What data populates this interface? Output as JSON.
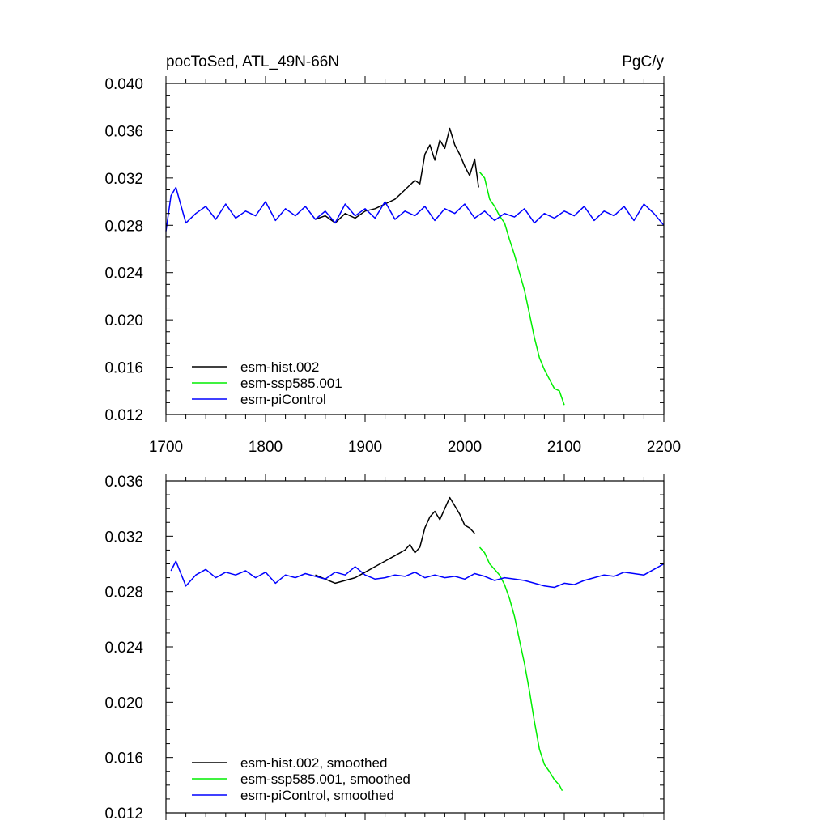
{
  "chart_data": [
    {
      "type": "line",
      "title": "pocToSed, ATL_49N-66N",
      "units": "PgC/y",
      "xlabel": "",
      "ylabel": "",
      "xlim": [
        1700,
        2200
      ],
      "ylim": [
        0.012,
        0.04
      ],
      "xticks": [
        1700,
        1800,
        1900,
        2000,
        2100,
        2200
      ],
      "xtick_labels": [
        "1700",
        "1800",
        "1900",
        "2000",
        "2100",
        "2200"
      ],
      "yticks": [
        0.012,
        0.016,
        0.02,
        0.024,
        0.028,
        0.032,
        0.036,
        0.04
      ],
      "ytick_labels": [
        "0.012",
        "0.016",
        "0.020",
        "0.024",
        "0.028",
        "0.032",
        "0.036",
        "0.040"
      ],
      "legend_position": "bottom-left",
      "series": [
        {
          "name": "esm-hist.002",
          "color": "#000000",
          "x": [
            1850,
            1860,
            1870,
            1880,
            1890,
            1900,
            1910,
            1920,
            1930,
            1940,
            1950,
            1955,
            1960,
            1965,
            1970,
            1975,
            1980,
            1985,
            1990,
            1995,
            2000,
            2005,
            2010,
            2014
          ],
          "y": [
            0.0285,
            0.0288,
            0.0282,
            0.029,
            0.0286,
            0.0292,
            0.0294,
            0.0298,
            0.0302,
            0.031,
            0.0318,
            0.0315,
            0.034,
            0.0348,
            0.0335,
            0.0352,
            0.0345,
            0.0362,
            0.0348,
            0.034,
            0.033,
            0.0322,
            0.0336,
            0.0312
          ]
        },
        {
          "name": "esm-ssp585.001",
          "color": "#00ee00",
          "x": [
            2015,
            2020,
            2025,
            2030,
            2035,
            2040,
            2045,
            2050,
            2055,
            2060,
            2065,
            2070,
            2075,
            2080,
            2085,
            2090,
            2095,
            2100
          ],
          "y": [
            0.0325,
            0.032,
            0.0302,
            0.0296,
            0.0288,
            0.0282,
            0.0268,
            0.0255,
            0.024,
            0.0225,
            0.0205,
            0.0185,
            0.0168,
            0.0158,
            0.015,
            0.0142,
            0.014,
            0.0128
          ]
        },
        {
          "name": "esm-piControl",
          "color": "#0000ff",
          "x": [
            1700,
            1705,
            1710,
            1720,
            1730,
            1740,
            1750,
            1760,
            1770,
            1780,
            1790,
            1800,
            1810,
            1820,
            1830,
            1840,
            1850,
            1860,
            1870,
            1880,
            1890,
            1900,
            1910,
            1920,
            1930,
            1940,
            1950,
            1960,
            1970,
            1980,
            1990,
            2000,
            2010,
            2020,
            2030,
            2040,
            2050,
            2060,
            2070,
            2080,
            2090,
            2100,
            2110,
            2120,
            2130,
            2140,
            2150,
            2160,
            2170,
            2180,
            2190,
            2200
          ],
          "y": [
            0.0275,
            0.0305,
            0.0312,
            0.0282,
            0.029,
            0.0296,
            0.0285,
            0.0298,
            0.0286,
            0.0292,
            0.0288,
            0.03,
            0.0284,
            0.0294,
            0.0288,
            0.0296,
            0.0285,
            0.0292,
            0.0282,
            0.0298,
            0.0288,
            0.0294,
            0.0286,
            0.03,
            0.0285,
            0.0292,
            0.0288,
            0.0296,
            0.0284,
            0.0294,
            0.029,
            0.0298,
            0.0286,
            0.0292,
            0.0284,
            0.029,
            0.0287,
            0.0294,
            0.0282,
            0.029,
            0.0286,
            0.0292,
            0.0288,
            0.0296,
            0.0284,
            0.0292,
            0.0288,
            0.0296,
            0.0284,
            0.0298,
            0.029,
            0.028
          ]
        }
      ]
    },
    {
      "type": "line",
      "title": "",
      "xlabel": "",
      "ylabel": "",
      "xlim": [
        1700,
        2200
      ],
      "ylim": [
        0.012,
        0.036
      ],
      "xticks": [
        1700,
        1800,
        1900,
        2000,
        2100,
        2200
      ],
      "yticks": [
        0.012,
        0.016,
        0.02,
        0.024,
        0.028,
        0.032,
        0.036
      ],
      "ytick_labels": [
        "0.012",
        "0.016",
        "0.020",
        "0.024",
        "0.028",
        "0.032",
        "0.036"
      ],
      "legend_position": "bottom-left",
      "series": [
        {
          "name": "esm-hist.002, smoothed",
          "color": "#000000",
          "x": [
            1850,
            1860,
            1870,
            1880,
            1890,
            1900,
            1910,
            1920,
            1930,
            1940,
            1945,
            1950,
            1955,
            1960,
            1965,
            1970,
            1975,
            1980,
            1985,
            1990,
            1995,
            2000,
            2005,
            2010
          ],
          "y": [
            0.0292,
            0.0289,
            0.0286,
            0.0288,
            0.029,
            0.0294,
            0.0298,
            0.0302,
            0.0306,
            0.031,
            0.0314,
            0.0308,
            0.0312,
            0.0326,
            0.0334,
            0.0338,
            0.0332,
            0.034,
            0.0348,
            0.0342,
            0.0336,
            0.0328,
            0.0326,
            0.0322
          ]
        },
        {
          "name": "esm-ssp585.001, smoothed",
          "color": "#00ee00",
          "x": [
            2015,
            2020,
            2025,
            2030,
            2035,
            2040,
            2045,
            2050,
            2055,
            2060,
            2065,
            2070,
            2075,
            2080,
            2085,
            2090,
            2095,
            2098
          ],
          "y": [
            0.0312,
            0.0308,
            0.03,
            0.0296,
            0.0292,
            0.0285,
            0.0275,
            0.0262,
            0.0245,
            0.0228,
            0.0208,
            0.0186,
            0.0166,
            0.0155,
            0.015,
            0.0144,
            0.014,
            0.0136
          ]
        },
        {
          "name": "esm-piControl, smoothed",
          "color": "#0000ff",
          "x": [
            1705,
            1710,
            1720,
            1730,
            1740,
            1750,
            1760,
            1770,
            1780,
            1790,
            1800,
            1810,
            1820,
            1830,
            1840,
            1850,
            1860,
            1870,
            1880,
            1890,
            1900,
            1910,
            1920,
            1930,
            1940,
            1950,
            1960,
            1970,
            1980,
            1990,
            2000,
            2010,
            2020,
            2030,
            2040,
            2050,
            2060,
            2070,
            2080,
            2090,
            2100,
            2110,
            2120,
            2130,
            2140,
            2150,
            2160,
            2170,
            2180,
            2190,
            2200
          ],
          "y": [
            0.0295,
            0.0302,
            0.0284,
            0.0292,
            0.0296,
            0.029,
            0.0294,
            0.0292,
            0.0295,
            0.029,
            0.0294,
            0.0286,
            0.0292,
            0.029,
            0.0293,
            0.0291,
            0.0289,
            0.0294,
            0.0292,
            0.0298,
            0.0292,
            0.0289,
            0.029,
            0.0292,
            0.0291,
            0.0294,
            0.029,
            0.0292,
            0.029,
            0.0291,
            0.0289,
            0.0293,
            0.0291,
            0.0288,
            0.029,
            0.0289,
            0.0288,
            0.0286,
            0.0284,
            0.0283,
            0.0286,
            0.0285,
            0.0288,
            0.029,
            0.0292,
            0.0291,
            0.0294,
            0.0293,
            0.0292,
            0.0296,
            0.03
          ]
        }
      ]
    }
  ]
}
